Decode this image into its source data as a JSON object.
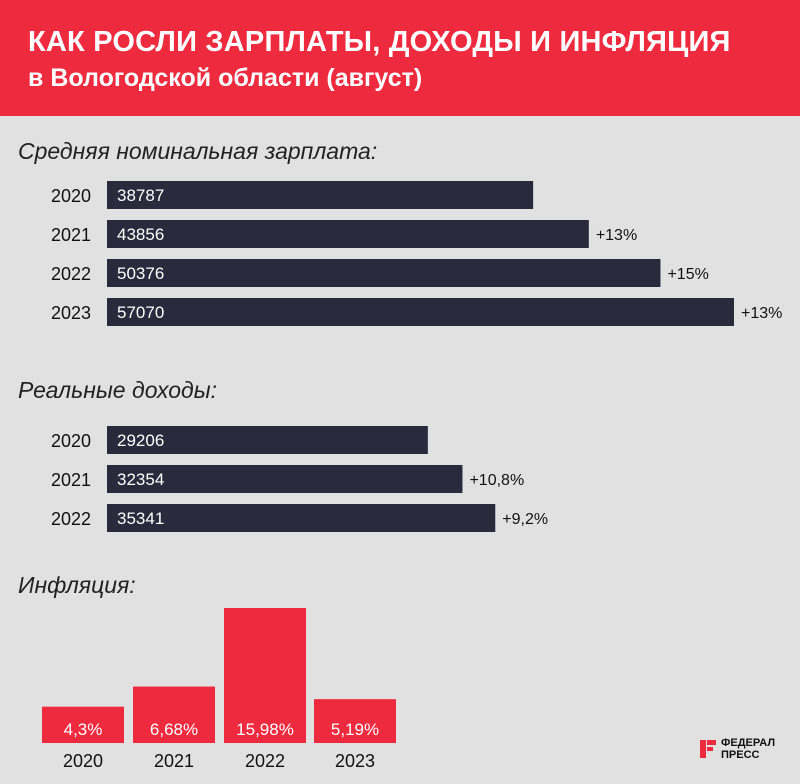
{
  "header": {
    "title": "КАК РОСЛИ ЗАРПЛАТЫ, ДОХОДЫ И ИНФЛЯЦИЯ",
    "subtitle": "в Вологодской области (август)"
  },
  "sections": {
    "salary_title": "Средняя номинальная зарплата:",
    "income_title": "Реальные доходы:",
    "inflation_title": "Инфляция:"
  },
  "logo": {
    "line1": "ФЕДЕРАЛ",
    "line2": "ПРЕСС"
  },
  "colors": {
    "header": "#ee2a3f",
    "bar_dark": "#2a2a3c",
    "bar_red": "#ee2a3f",
    "background": "#e1e1e1"
  },
  "chart_data": [
    {
      "type": "bar",
      "orientation": "horizontal",
      "title": "Средняя номинальная зарплата:",
      "categories": [
        "2020",
        "2021",
        "2022",
        "2023"
      ],
      "values": [
        38787,
        43856,
        50376,
        57070
      ],
      "value_labels": [
        "38787",
        "43856",
        "50376",
        "57070"
      ],
      "change_labels": [
        "",
        "+13%",
        "+15%",
        "+13%"
      ],
      "color": "#2a2a3c"
    },
    {
      "type": "bar",
      "orientation": "horizontal",
      "title": "Реальные доходы:",
      "categories": [
        "2020",
        "2021",
        "2022"
      ],
      "values": [
        29206,
        32354,
        35341
      ],
      "value_labels": [
        "29206",
        "32354",
        "35341"
      ],
      "change_labels": [
        "",
        "+10,8%",
        "+9,2%"
      ],
      "color": "#2a2a3c"
    },
    {
      "type": "bar",
      "orientation": "vertical",
      "title": "Инфляция:",
      "categories": [
        "2020",
        "2021",
        "2022",
        "2023"
      ],
      "values": [
        4.3,
        6.68,
        15.98,
        5.19
      ],
      "value_labels": [
        "4,3%",
        "6,68%",
        "15,98%",
        "5,19%"
      ],
      "color": "#ee2a3f"
    }
  ]
}
